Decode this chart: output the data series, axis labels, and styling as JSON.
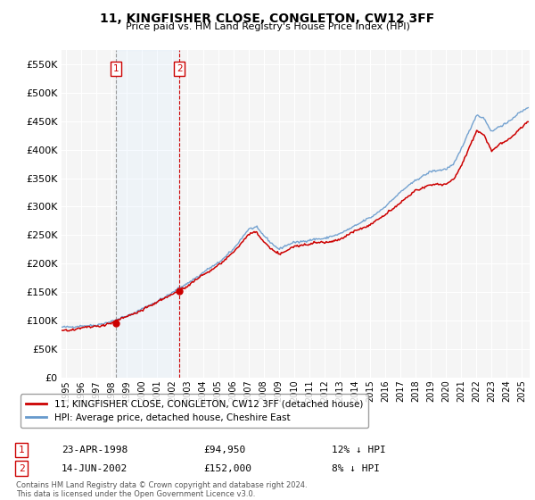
{
  "title": "11, KINGFISHER CLOSE, CONGLETON, CW12 3FF",
  "subtitle": "Price paid vs. HM Land Registry's House Price Index (HPI)",
  "legend_line1": "11, KINGFISHER CLOSE, CONGLETON, CW12 3FF (detached house)",
  "legend_line2": "HPI: Average price, detached house, Cheshire East",
  "footer": "Contains HM Land Registry data © Crown copyright and database right 2024.\nThis data is licensed under the Open Government Licence v3.0.",
  "sale1_date": "23-APR-1998",
  "sale1_price": "£94,950",
  "sale1_hpi": "12% ↓ HPI",
  "sale2_date": "14-JUN-2002",
  "sale2_price": "£152,000",
  "sale2_hpi": "8% ↓ HPI",
  "red_line_color": "#cc0000",
  "blue_line_color": "#6699cc",
  "marker_box_color": "#cc0000",
  "shade_color": "#ddeeff",
  "ylim": [
    0,
    575000
  ],
  "yticks": [
    0,
    50000,
    100000,
    150000,
    200000,
    250000,
    300000,
    350000,
    400000,
    450000,
    500000,
    550000
  ],
  "xlim_start": 1994.7,
  "xlim_end": 2025.5,
  "sale1_year": 1998.3,
  "sale1_price_val": 94950,
  "sale2_year": 2002.45,
  "sale2_price_val": 152000,
  "background_color": "#ffffff",
  "plot_bg_color": "#f5f5f5",
  "grid_color": "#ffffff"
}
